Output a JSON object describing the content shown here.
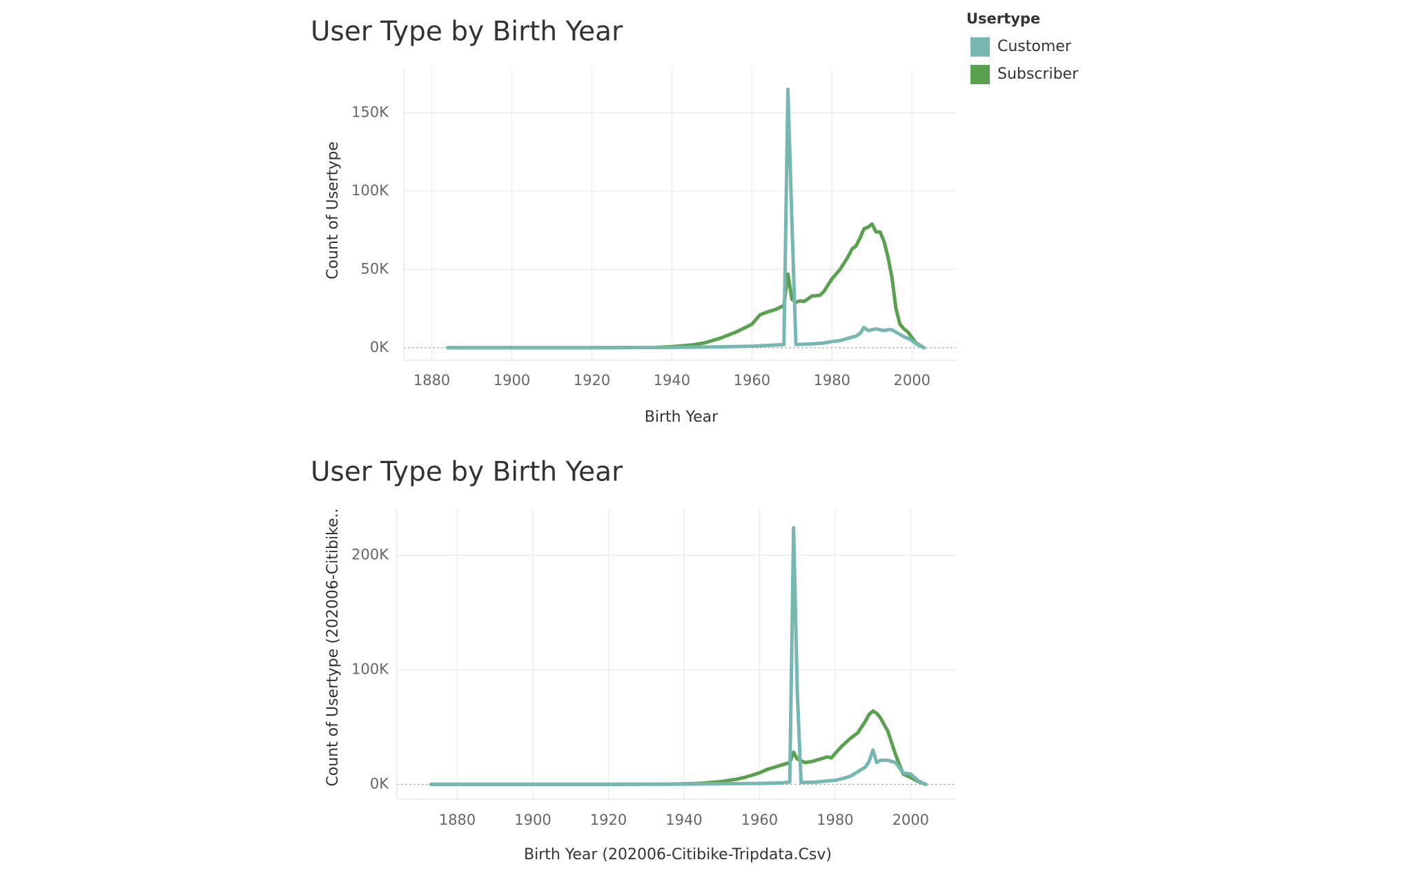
{
  "colors": {
    "customer": "#76b7b2",
    "subscriber": "#59a14f"
  },
  "legend": {
    "title": "Usertype",
    "items": [
      {
        "label": "Customer",
        "color": "#76b7b2"
      },
      {
        "label": "Subscriber",
        "color": "#59a14f"
      }
    ]
  },
  "chart_data": [
    {
      "type": "line",
      "title": "User Type by Birth Year",
      "xlabel": "Birth Year",
      "ylabel": "Count of Usertype",
      "xlim": [
        1873,
        2011
      ],
      "ylim": [
        -8000,
        178000
      ],
      "x_ticks": [
        1880,
        1900,
        1920,
        1940,
        1960,
        1980,
        2000
      ],
      "x_tick_labels": [
        "1880",
        "1900",
        "1920",
        "1940",
        "1960",
        "1980",
        "2000"
      ],
      "y_ticks": [
        0,
        50000,
        100000,
        150000
      ],
      "y_tick_labels": [
        "0K",
        "50K",
        "100K",
        "150K"
      ],
      "grid": true,
      "legend_position": "top-right",
      "series": [
        {
          "name": "Subscriber",
          "x": [
            1884,
            1900,
            1920,
            1936,
            1940,
            1945,
            1948,
            1950,
            1952,
            1954,
            1956,
            1958,
            1960,
            1961,
            1962,
            1964,
            1966,
            1968,
            1969,
            1970,
            1971,
            1972,
            1973,
            1975,
            1977,
            1978,
            1979,
            1980,
            1982,
            1984,
            1985,
            1986,
            1987,
            1988,
            1989,
            1990,
            1991,
            1992,
            1993,
            1994,
            1995,
            1996,
            1997,
            1998,
            1999,
            2000,
            2001,
            2003
          ],
          "y": [
            0,
            0,
            0,
            200,
            700,
            1800,
            3000,
            4500,
            6000,
            8000,
            10000,
            12500,
            15000,
            18000,
            21000,
            23000,
            24500,
            27000,
            47000,
            31000,
            29000,
            30000,
            29500,
            33000,
            33500,
            36000,
            40000,
            44000,
            50000,
            58000,
            63000,
            65000,
            70000,
            76000,
            77000,
            79000,
            74000,
            74000,
            68000,
            58000,
            45000,
            25000,
            15000,
            12000,
            10000,
            6500,
            3000,
            0
          ]
        },
        {
          "name": "Customer",
          "x": [
            1884,
            1900,
            1920,
            1940,
            1950,
            1960,
            1968,
            1969,
            1970,
            1971,
            1975,
            1978,
            1980,
            1982,
            1984,
            1986,
            1987,
            1988,
            1989,
            1990,
            1991,
            1992,
            1993,
            1994,
            1995,
            1996,
            1997,
            1998,
            1999,
            2000,
            2001,
            2003
          ],
          "y": [
            0,
            0,
            0,
            200,
            500,
            1000,
            2000,
            165000,
            80000,
            2000,
            2500,
            3000,
            4000,
            4500,
            6000,
            7500,
            9000,
            13000,
            11000,
            11500,
            12000,
            11500,
            11000,
            11500,
            11500,
            10000,
            8500,
            7000,
            6000,
            4500,
            2500,
            0
          ]
        }
      ]
    },
    {
      "type": "line",
      "title": "User Type by Birth Year",
      "xlabel": "Birth Year (202006-Citibike-Tripdata.Csv)",
      "ylabel": "Count of Usertype (202006-Citibike..",
      "xlim": [
        1864,
        2012
      ],
      "ylim": [
        -13000,
        240000
      ],
      "x_ticks": [
        1880,
        1900,
        1920,
        1940,
        1960,
        1980,
        2000
      ],
      "x_tick_labels": [
        "1880",
        "1900",
        "1920",
        "1940",
        "1960",
        "1980",
        "2000"
      ],
      "y_ticks": [
        0,
        100000,
        200000
      ],
      "y_tick_labels": [
        "0K",
        "100K",
        "200K"
      ],
      "grid": true,
      "legend_position": "top-right",
      "series": [
        {
          "name": "Subscriber",
          "x": [
            1873,
            1878,
            1900,
            1920,
            1936,
            1940,
            1945,
            1950,
            1954,
            1956,
            1958,
            1960,
            1962,
            1964,
            1966,
            1968,
            1969,
            1970,
            1972,
            1974,
            1976,
            1978,
            1979,
            1980,
            1982,
            1984,
            1986,
            1988,
            1989,
            1990,
            1991,
            1992,
            1994,
            1996,
            1998,
            2000,
            2002,
            2004
          ],
          "y": [
            0,
            0,
            0,
            0,
            200,
            500,
            1000,
            2500,
            4500,
            6000,
            8000,
            10000,
            13000,
            15000,
            17000,
            19000,
            28000,
            22000,
            19000,
            20000,
            22000,
            24000,
            23000,
            27000,
            34000,
            40000,
            45000,
            55000,
            61000,
            64000,
            62000,
            58000,
            46000,
            26000,
            9000,
            6000,
            2500,
            0
          ]
        },
        {
          "name": "Customer",
          "x": [
            1873,
            1900,
            1920,
            1940,
            1950,
            1960,
            1966,
            1968,
            1969,
            1970,
            1971,
            1975,
            1978,
            1980,
            1982,
            1984,
            1986,
            1988,
            1989,
            1990,
            1991,
            1992,
            1994,
            1996,
            1998,
            2000,
            2002,
            2004
          ],
          "y": [
            0,
            0,
            0,
            200,
            500,
            800,
            1200,
            2000,
            224000,
            80000,
            1500,
            2000,
            3000,
            3500,
            5000,
            7000,
            11000,
            15000,
            20000,
            30000,
            19000,
            21000,
            21000,
            19000,
            10000,
            9000,
            3000,
            0
          ]
        }
      ]
    }
  ]
}
